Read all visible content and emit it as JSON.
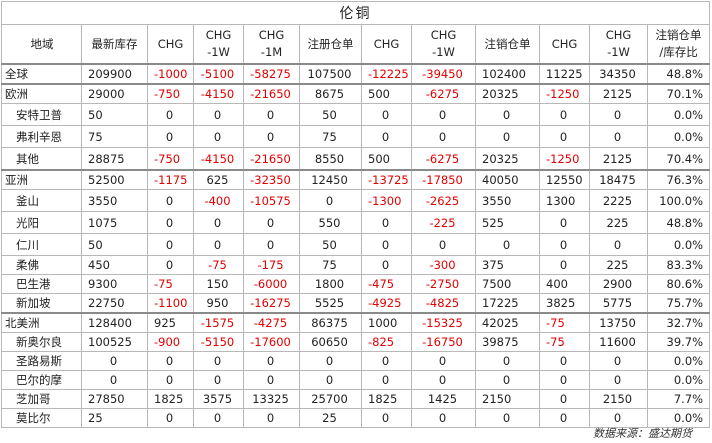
{
  "title": "伦铜",
  "headers": [
    "地域",
    "最新库存",
    "CHG",
    "CHG\n-1W",
    "CHG\n-1M",
    "注册仓单",
    "CHG",
    "CHG\n-1W",
    "注销仓单",
    "CHG",
    "CHG\n-1W",
    "注销仓单\n/库存比"
  ],
  "rows": [
    {
      "name": "全球",
      "sub": false,
      "sep": false,
      "tall": false,
      "cells": [
        "209900",
        "-1000",
        "-5100",
        "-58275",
        "107500",
        "-12225",
        "-39450",
        "102400",
        "11225",
        "34350",
        "48.8%"
      ]
    },
    {
      "name": "欧洲",
      "sub": false,
      "sep": true,
      "tall": false,
      "cells": [
        "29000",
        "-750",
        "-4150",
        "-21650",
        "8675",
        "500",
        "-6275",
        "20325",
        "-1250",
        "2125",
        "70.1%"
      ]
    },
    {
      "name": "安特卫普",
      "sub": true,
      "sep": false,
      "tall": true,
      "cells": [
        "50",
        "0",
        "0",
        "0",
        "50",
        "0",
        "0",
        "0",
        "0",
        "0",
        "0.0%"
      ]
    },
    {
      "name": "弗利辛恩",
      "sub": true,
      "sep": false,
      "tall": true,
      "cells": [
        "75",
        "0",
        "0",
        "0",
        "75",
        "0",
        "0",
        "0",
        "0",
        "0",
        "0.0%"
      ]
    },
    {
      "name": "其他",
      "sub": true,
      "sep": false,
      "tall": true,
      "cells": [
        "28875",
        "-750",
        "-4150",
        "-21650",
        "8550",
        "500",
        "-6275",
        "20325",
        "-1250",
        "2125",
        "70.4%"
      ]
    },
    {
      "name": "亚洲",
      "sub": false,
      "sep": true,
      "tall": false,
      "cells": [
        "52500",
        "-1175",
        "625",
        "-32350",
        "12450",
        "-13725",
        "-17850",
        "40050",
        "12550",
        "18475",
        "76.3%"
      ]
    },
    {
      "name": "釜山",
      "sub": true,
      "sep": false,
      "tall": true,
      "cells": [
        "3550",
        "0",
        "-400",
        "-10575",
        "0",
        "-1300",
        "-2625",
        "3550",
        "1300",
        "2225",
        "100.0%"
      ]
    },
    {
      "name": "光阳",
      "sub": true,
      "sep": false,
      "tall": true,
      "cells": [
        "1075",
        "0",
        "0",
        "0",
        "550",
        "0",
        "-225",
        "525",
        "0",
        "225",
        "48.8%"
      ]
    },
    {
      "name": "仁川",
      "sub": true,
      "sep": false,
      "tall": true,
      "cells": [
        "50",
        "0",
        "0",
        "0",
        "50",
        "0",
        "0",
        "0",
        "0",
        "0",
        "0.0%"
      ]
    },
    {
      "name": "柔佛",
      "sub": true,
      "sep": false,
      "tall": false,
      "cells": [
        "450",
        "0",
        "-75",
        "-175",
        "75",
        "0",
        "-300",
        "375",
        "0",
        "225",
        "83.3%"
      ]
    },
    {
      "name": "巴生港",
      "sub": true,
      "sep": false,
      "tall": false,
      "cells": [
        "9300",
        "-75",
        "150",
        "-6000",
        "1800",
        "-475",
        "-2750",
        "7500",
        "400",
        "2900",
        "80.6%"
      ]
    },
    {
      "name": "新加坡",
      "sub": true,
      "sep": false,
      "tall": false,
      "cells": [
        "22750",
        "-1100",
        "950",
        "-16275",
        "5525",
        "-4925",
        "-4825",
        "17225",
        "3825",
        "5775",
        "75.7%"
      ]
    },
    {
      "name": "北美洲",
      "sub": false,
      "sep": true,
      "tall": false,
      "cells": [
        "128400",
        "925",
        "-1575",
        "-4275",
        "86375",
        "1000",
        "-15325",
        "42025",
        "-75",
        "13750",
        "32.7%"
      ]
    },
    {
      "name": "新奥尔良",
      "sub": true,
      "sep": false,
      "tall": false,
      "cells": [
        "100525",
        "-900",
        "-5150",
        "-17600",
        "60650",
        "-825",
        "-16750",
        "39875",
        "-75",
        "11600",
        "39.7%"
      ]
    },
    {
      "name": "圣路易斯",
      "sub": true,
      "sep": false,
      "tall": false,
      "cells": [
        "0",
        "0",
        "0",
        "0",
        "0",
        "0",
        "0",
        "0",
        "0",
        "0",
        "0.0%"
      ]
    },
    {
      "name": "巴尔的摩",
      "sub": true,
      "sep": false,
      "tall": false,
      "cells": [
        "0",
        "0",
        "0",
        "0",
        "0",
        "0",
        "0",
        "0",
        "0",
        "0",
        "0.0%"
      ]
    },
    {
      "name": "芝加哥",
      "sub": true,
      "sep": false,
      "tall": false,
      "cells": [
        "27850",
        "1825",
        "3575",
        "13325",
        "25700",
        "1825",
        "1425",
        "2150",
        "0",
        "2150",
        "7.7%"
      ]
    },
    {
      "name": "莫比尔",
      "sub": true,
      "sep": false,
      "tall": false,
      "cells": [
        "25",
        "0",
        "0",
        "0",
        "25",
        "0",
        "0",
        "0",
        "0",
        "0",
        "0.0%"
      ]
    }
  ],
  "source": "数据来源：盛达期货",
  "colors": {
    "negative": "#e00000",
    "text": "#222222",
    "border": "#b8b8b8"
  }
}
